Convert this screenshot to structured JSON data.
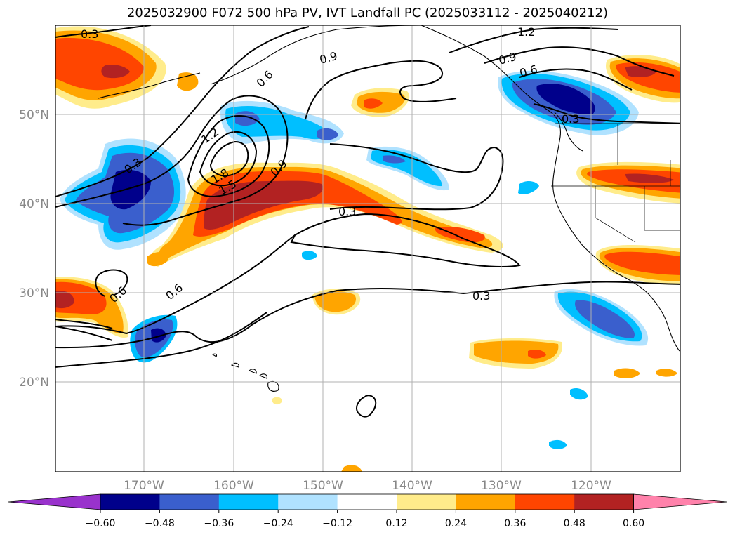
{
  "title": "2025032900 F072 500 hPa PV, IVT Landfall PC (2025033112 - 2025040212)",
  "map": {
    "lat_labels": [
      "50°N",
      "40°N",
      "30°N",
      "20°N"
    ],
    "lon_labels": [
      "170°W",
      "160°W",
      "150°W",
      "140°W",
      "130°W",
      "120°W"
    ],
    "contour_labels": [
      "0.3",
      "0.6",
      "0.9",
      "1.2",
      "1.5",
      "1.8",
      "0.3",
      "0.9",
      "0.3",
      "0.3",
      "0.6",
      "0.6",
      "0.3",
      "0.9",
      "0.6",
      "0.3",
      "1.2"
    ]
  },
  "colorbar": {
    "ticks": [
      "−0.60",
      "−0.48",
      "−0.36",
      "−0.24",
      "−0.12",
      "0.12",
      "0.24",
      "0.36",
      "0.48",
      "0.60"
    ],
    "colors": [
      "#9932cc",
      "#00008b",
      "#3a5fcd",
      "#00bfff",
      "#b0e2ff",
      "#ffffff",
      "#ffec8b",
      "#ffa500",
      "#ff4500",
      "#b22222",
      "#ff82ab"
    ]
  }
}
